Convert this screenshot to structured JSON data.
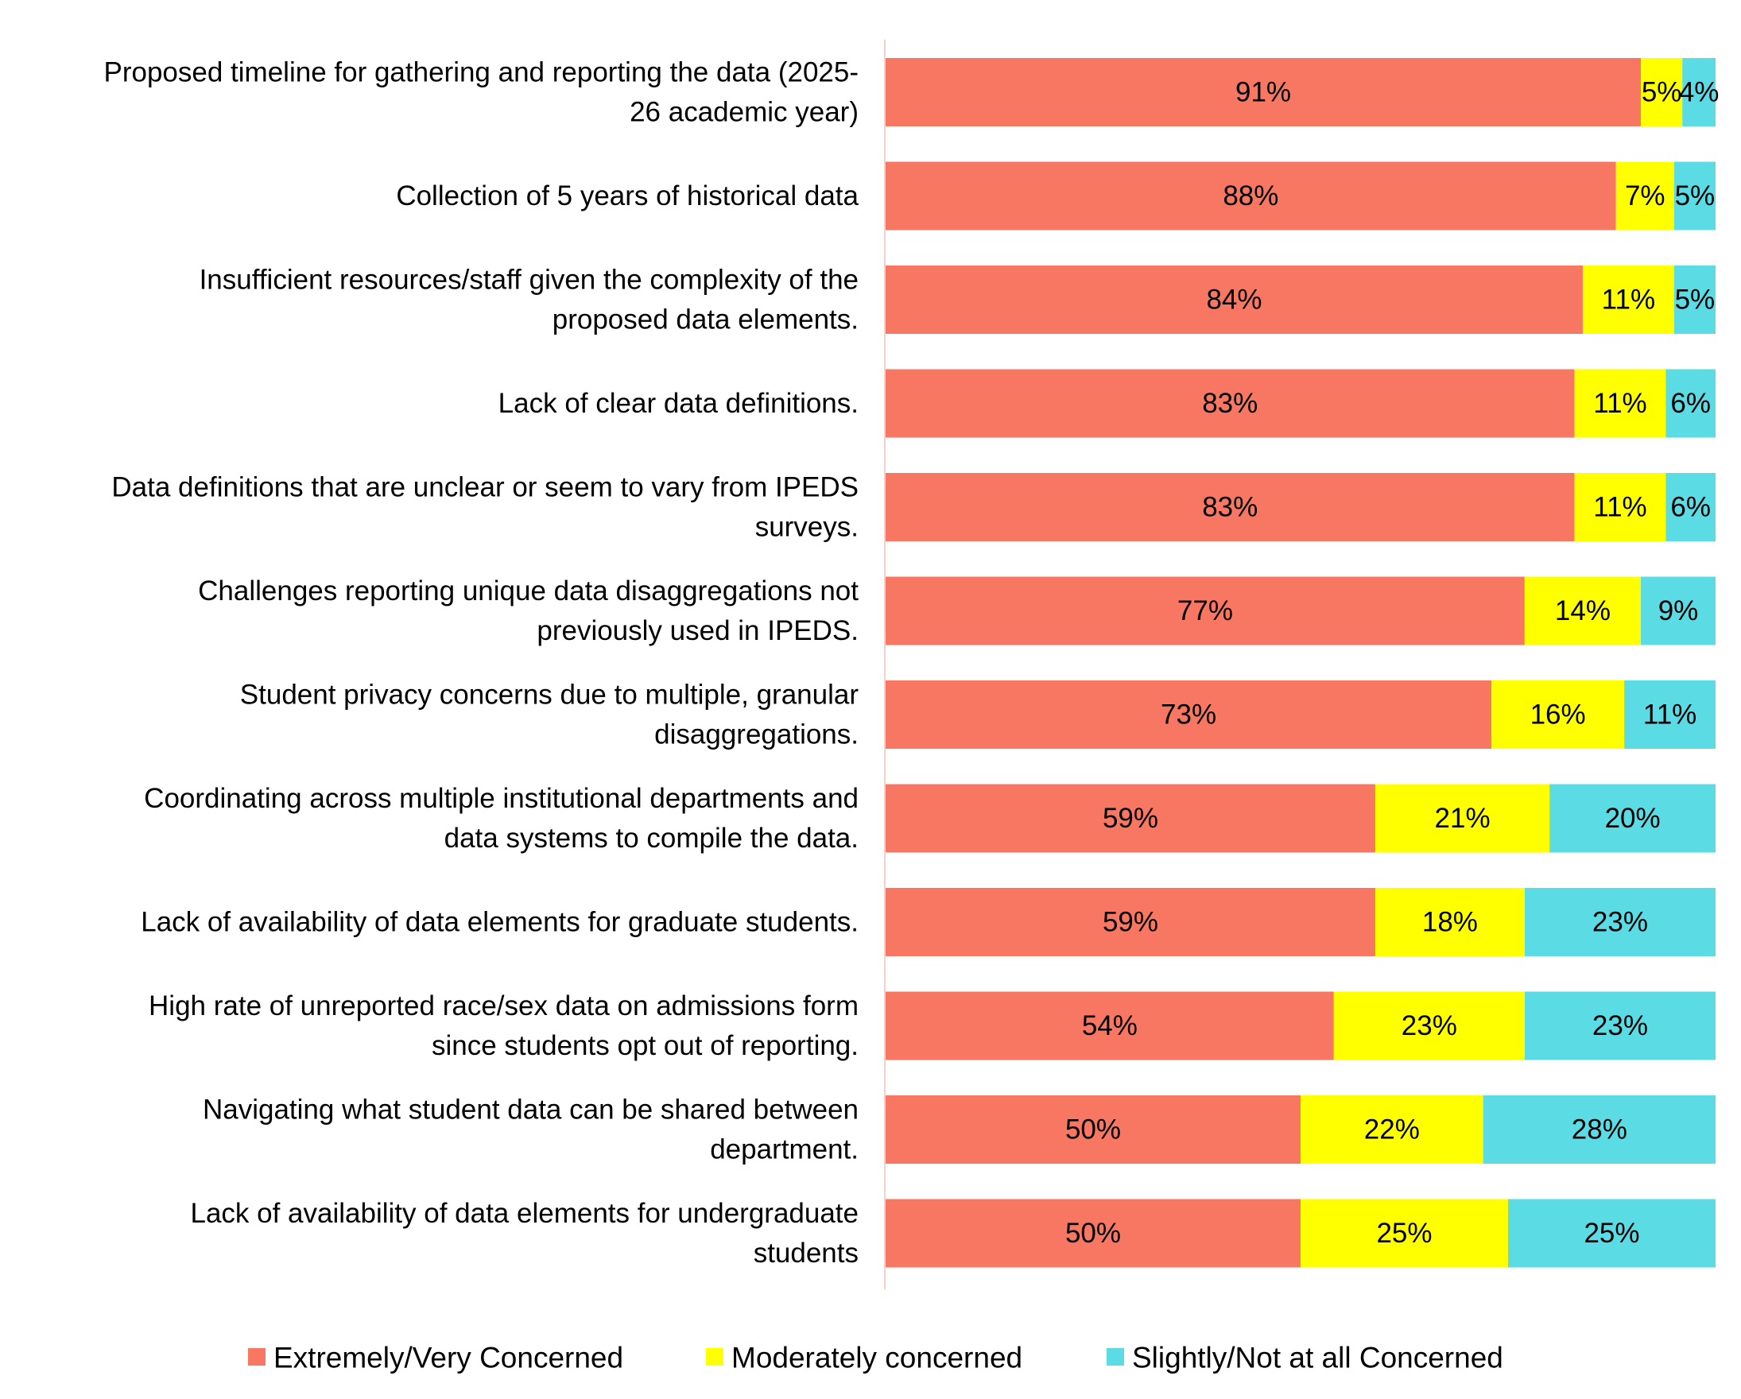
{
  "chart_data": {
    "type": "bar",
    "orientation": "horizontal",
    "stacked": "percent",
    "title": "",
    "xlabel": "",
    "ylabel": "",
    "grid": false,
    "legend_position": "bottom",
    "categories": [
      "Proposed timeline for gathering and reporting the data (2025-26 academic year)",
      "Collection of 5 years of historical data",
      "Insufficient resources/staff given the complexity of the proposed data elements.",
      "Lack of clear data definitions.",
      "Data definitions that are unclear or seem to vary from IPEDS surveys.",
      "Challenges reporting unique data disaggregations not previously used in IPEDS.",
      "Student privacy concerns due to multiple, granular disaggregations.",
      "Coordinating across multiple institutional departments and data systems to compile the data.",
      "Lack of availability of data elements for graduate students.",
      "High rate of unreported race/sex data on admissions form since students opt out of reporting.",
      "Navigating what student data can be shared between department.",
      "Lack of availability of data elements for undergraduate students"
    ],
    "category_lines": [
      [
        "Proposed timeline for gathering and reporting the data (2025-",
        "26 academic year)"
      ],
      [
        "Collection of 5 years of historical data"
      ],
      [
        "Insufficient resources/staff given the complexity of the",
        "proposed data elements."
      ],
      [
        "Lack of clear data definitions."
      ],
      [
        "Data definitions that are unclear or seem to vary from IPEDS",
        "surveys."
      ],
      [
        "Challenges reporting unique data disaggregations not",
        "previously used in IPEDS."
      ],
      [
        "Student privacy concerns due to multiple, granular",
        "disaggregations."
      ],
      [
        "Coordinating across multiple institutional departments and",
        "data systems to compile the data."
      ],
      [
        "Lack of availability of data elements for graduate students."
      ],
      [
        "High rate of unreported race/sex data on admissions form",
        "since students opt out of reporting."
      ],
      [
        "Navigating what student data can be shared between",
        "department."
      ],
      [
        "Lack of availability of data elements for undergraduate",
        "students"
      ]
    ],
    "series": [
      {
        "name": "Extremely/Very Concerned",
        "color": "#f87762",
        "values": [
          91,
          88,
          84,
          83,
          83,
          77,
          73,
          59,
          59,
          54,
          50,
          50
        ]
      },
      {
        "name": "Moderately concerned",
        "color": "#ffff00",
        "values": [
          5,
          7,
          11,
          11,
          11,
          14,
          16,
          21,
          18,
          23,
          22,
          25
        ]
      },
      {
        "name": "Slightly/Not at all Concerned",
        "color": "#5bdbe3",
        "values": [
          4,
          5,
          5,
          6,
          6,
          9,
          11,
          20,
          23,
          23,
          28,
          25
        ]
      }
    ],
    "value_suffix": "%",
    "axis_line_color": "#f3d0c8"
  }
}
